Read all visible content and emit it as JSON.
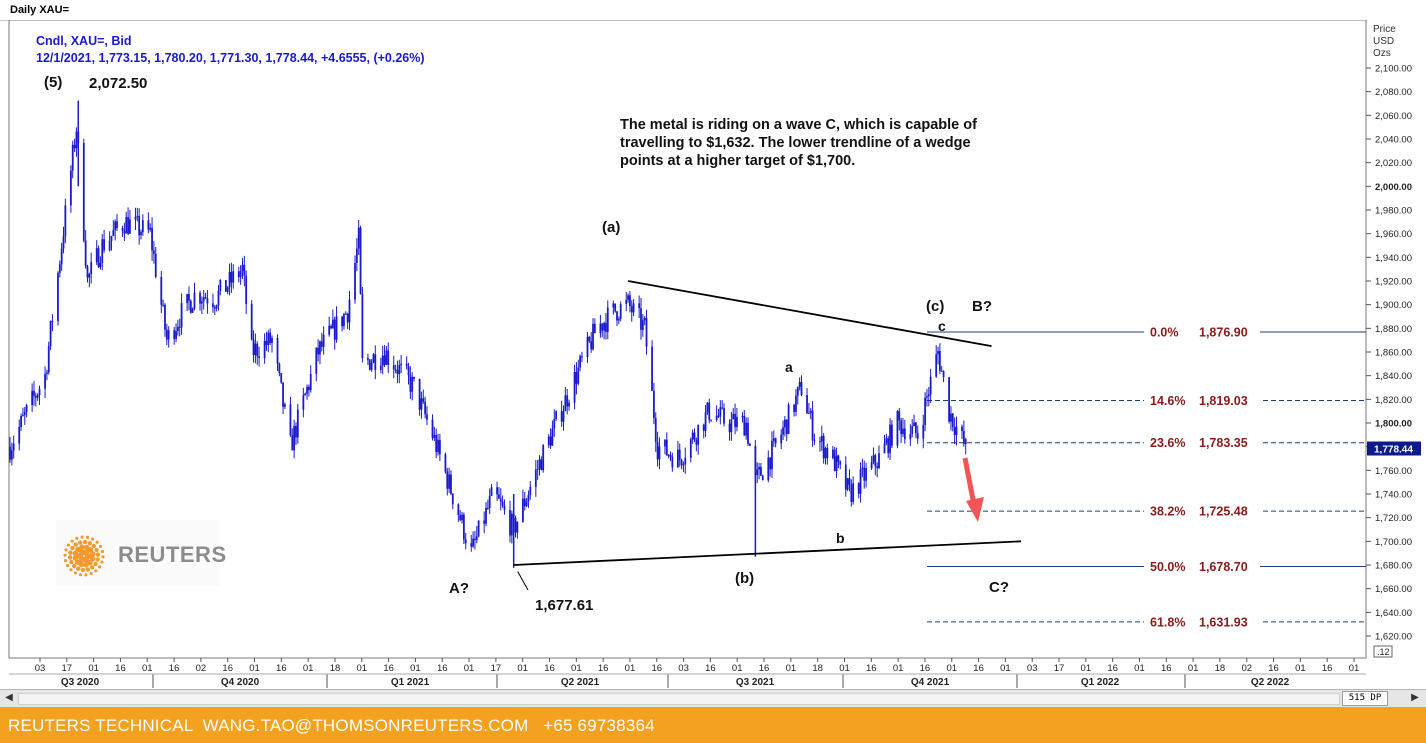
{
  "window": {
    "title": "Daily XAU="
  },
  "legend": {
    "line1": "Cndl, XAU=, Bid",
    "line2": "12/1/2021, 1,773.15, 1,780.20, 1,771.30, 1,778.44, +4.6555, (+0.26%)",
    "color": "#1a1acc"
  },
  "annotations": {
    "wave5": "(5)",
    "peak_price": "2,072.50",
    "commentary": [
      "The metal is riding on a wave C, which is capable of",
      "travelling to $1,632. The lower trendline of a wedge",
      "points at a higher target of $1,700."
    ],
    "wave_a_paren": "(a)",
    "wave_b_paren": "(b)",
    "wave_c_paren": "(c)",
    "wave_B_q": "B?",
    "wave_c_small": "c",
    "wave_a_small": "a",
    "wave_b_small": "b",
    "wave_A_q": "A?",
    "wave_C_q": "C?",
    "low_price": "1,677.61"
  },
  "logo": {
    "word": "REUTERS"
  },
  "axis": {
    "header": [
      "Price",
      "USD",
      "Ozs"
    ],
    "badge": "1,778.44",
    "bottom_badge": ".12",
    "price_ticks": [
      1620,
      1640,
      1660,
      1680,
      1700,
      1720,
      1740,
      1760,
      1780,
      1800,
      1820,
      1840,
      1860,
      1880,
      1900,
      1920,
      1940,
      1960,
      1980,
      2000,
      2020,
      2040,
      2060,
      2080,
      2100
    ],
    "date_ticks": [
      "03",
      "17",
      "01",
      "16",
      "01",
      "16",
      "02",
      "16",
      "01",
      "16",
      "01",
      "18",
      "01",
      "16",
      "01",
      "16",
      "01",
      "17",
      "01",
      "16",
      "01",
      "16",
      "01",
      "16",
      "03",
      "16",
      "01",
      "16",
      "01",
      "18",
      "01",
      "16",
      "01",
      "16",
      "01",
      "16",
      "01",
      "03",
      "17",
      "01",
      "16",
      "01",
      "16",
      "01",
      "18",
      "02",
      "16",
      "01",
      "16",
      "01"
    ],
    "quarters": [
      "Q3 2020",
      "Q4 2020",
      "Q1 2021",
      "Q2 2021",
      "Q3 2021",
      "Q4 2021",
      "Q1 2022",
      "Q2 2022"
    ]
  },
  "fibonacci": [
    {
      "pct": "0.0%",
      "price": "1,876.90"
    },
    {
      "pct": "14.6%",
      "price": "1,819.03"
    },
    {
      "pct": "23.6%",
      "price": "1,783.35"
    },
    {
      "pct": "38.2%",
      "price": "1,725.48"
    },
    {
      "pct": "50.0%",
      "price": "1,678.70"
    },
    {
      "pct": "61.8%",
      "price": "1,631.93"
    }
  ],
  "scroll": {
    "zoom": "515 DP"
  },
  "footer": {
    "text": "REUTERS TECHNICAL  WANG.TAO@THOMSONREUTERS.COM   +65 69738364"
  },
  "chart_data": {
    "type": "candlestick",
    "title": "Daily XAU=",
    "ylabel": "Price USD Ozs",
    "ylim": [
      1610,
      2110
    ],
    "grid": false,
    "x_range": [
      "2020-07-01",
      "2022-06-30"
    ],
    "series": [
      {
        "x": [
          "2020-07-01",
          "2020-07-20",
          "2020-08-06",
          "2020-08-12",
          "2020-08-20",
          "2020-09-01",
          "2020-09-15",
          "2020-09-24",
          "2020-10-01",
          "2020-10-10",
          "2020-10-20",
          "2020-11-04",
          "2020-11-09",
          "2020-11-20",
          "2020-11-30",
          "2020-12-15",
          "2020-12-31",
          "2021-01-06",
          "2021-01-08",
          "2021-01-20",
          "2021-02-05",
          "2021-02-15",
          "2021-03-01",
          "2021-03-08",
          "2021-03-20",
          "2021-03-31",
          "2021-04-15",
          "2021-05-01",
          "2021-05-15",
          "2021-05-25",
          "2021-06-01",
          "2021-06-10",
          "2021-06-17",
          "2021-06-29",
          "2021-07-15",
          "2021-07-25",
          "2021-08-04",
          "2021-08-09",
          "2021-08-20",
          "2021-09-03",
          "2021-09-10",
          "2021-09-20",
          "2021-09-29",
          "2021-10-15",
          "2021-10-25",
          "2021-11-05",
          "2021-11-16",
          "2021-11-22",
          "2021-12-01"
        ],
        "y": [
          1780,
          1840,
          2050,
          1920,
          1950,
          1970,
          1960,
          1870,
          1890,
          1910,
          1905,
          1930,
          1860,
          1870,
          1780,
          1860,
          1895,
          1955,
          1850,
          1860,
          1830,
          1790,
          1725,
          1690,
          1740,
          1710,
          1770,
          1830,
          1880,
          1895,
          1900,
          1880,
          1780,
          1770,
          1810,
          1800,
          1800,
          1750,
          1780,
          1830,
          1790,
          1770,
          1740,
          1770,
          1800,
          1790,
          1860,
          1810,
          1778.44
        ]
      }
    ],
    "key_levels": {
      "peak_2020": 2072.5,
      "low_A": 1677.61,
      "legend_ohlc": [
        1773.15,
        1780.2,
        1771.3,
        1778.44
      ],
      "change": 4.6555,
      "change_pct": 0.26
    },
    "trendlines": [
      {
        "name": "upper",
        "from": [
          "2021-06-01",
          1920
        ],
        "to": [
          "2021-12-15",
          1865
        ]
      },
      {
        "name": "lower",
        "from": [
          "2021-03-31",
          1680
        ],
        "to": [
          "2021-12-31",
          1700
        ]
      }
    ],
    "fib_levels": [
      1876.9,
      1819.03,
      1783.35,
      1725.48,
      1678.7,
      1631.93
    ],
    "fib_labels": [
      "0.0%",
      "14.6%",
      "23.6%",
      "38.2%",
      "50.0%",
      "61.8%"
    ],
    "colors": {
      "candle": "#1a1acc",
      "fib_line": "#1f3d7a",
      "fib_text": "#8b1a1a",
      "arrow": "#f25555",
      "footer": "#f4a11f"
    }
  }
}
